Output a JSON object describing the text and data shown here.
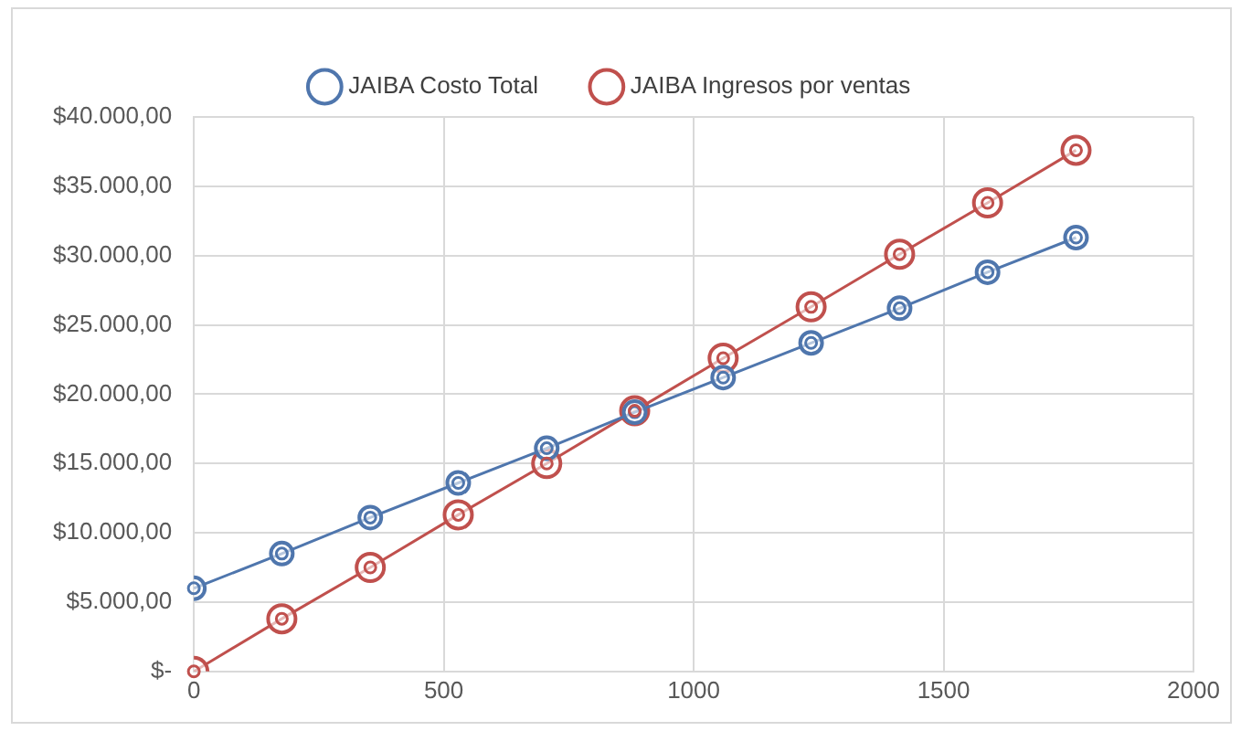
{
  "chart_data": {
    "type": "line",
    "x": [
      0,
      176,
      353,
      529,
      706,
      882,
      1059,
      1235,
      1412,
      1588,
      1765
    ],
    "series": [
      {
        "name": "JAIBA Costo Total",
        "color": "#4f76ad",
        "values": [
          6000,
          8500,
          11100,
          13600,
          16100,
          18700,
          21200,
          23700,
          26200,
          28800,
          31300
        ]
      },
      {
        "name": "JAIBA Ingresos por ventas",
        "color": "#c0504d",
        "values": [
          0,
          3800,
          7500,
          11300,
          15000,
          18800,
          22600,
          26300,
          30100,
          33800,
          37600
        ]
      }
    ],
    "xlim": [
      0,
      2000
    ],
    "xticks": [
      0,
      500,
      1000,
      1500,
      2000
    ],
    "ylim": [
      0,
      40000
    ],
    "yticks": [
      {
        "value": 0,
        "label": "$-"
      },
      {
        "value": 5000,
        "label": "$5.000,00"
      },
      {
        "value": 10000,
        "label": "$10.000,00"
      },
      {
        "value": 15000,
        "label": "$15.000,00"
      },
      {
        "value": 20000,
        "label": "$20.000,00"
      },
      {
        "value": 25000,
        "label": "$25.000,00"
      },
      {
        "value": 30000,
        "label": "$30.000,00"
      },
      {
        "value": 35000,
        "label": "$35.000,00"
      },
      {
        "value": 40000,
        "label": "$40.000,00"
      }
    ],
    "grid": true,
    "legend": "top",
    "marker": "circle",
    "line_style": "solid"
  }
}
